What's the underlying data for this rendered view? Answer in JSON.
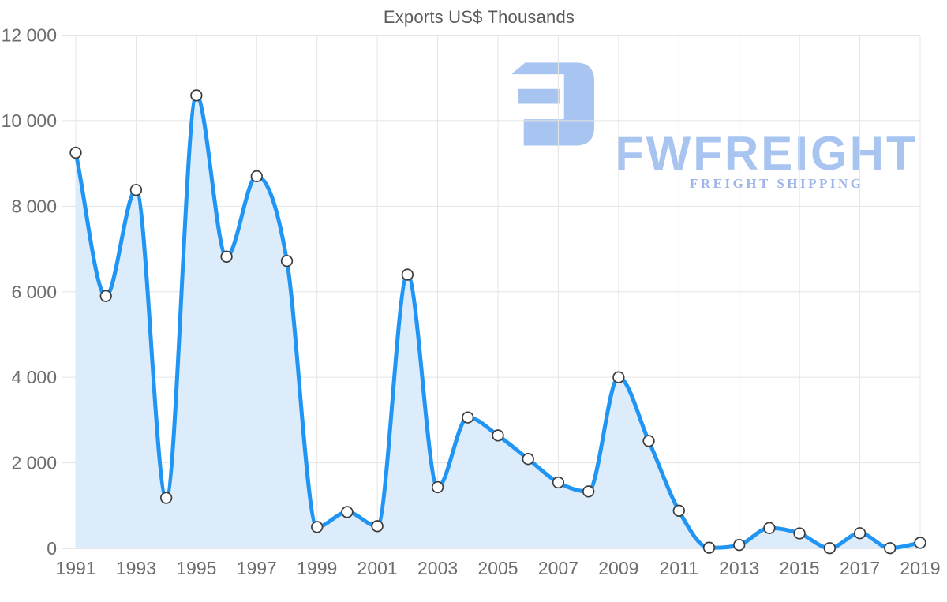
{
  "chart_data": {
    "type": "area",
    "title": "Exports US$ Thousands",
    "x": [
      1991,
      1992,
      1993,
      1994,
      1995,
      1996,
      1997,
      1998,
      1999,
      2000,
      2001,
      2002,
      2003,
      2004,
      2005,
      2006,
      2007,
      2008,
      2009,
      2010,
      2011,
      2012,
      2013,
      2014,
      2015,
      2016,
      2017,
      2018,
      2019
    ],
    "series": [
      {
        "name": "Exports",
        "values": [
          9250,
          5900,
          8380,
          1180,
          10590,
          6820,
          8700,
          6720,
          500,
          850,
          520,
          6400,
          1430,
          3060,
          2640,
          2090,
          1540,
          1330,
          4000,
          2510,
          880,
          15,
          80,
          475,
          350,
          5,
          355,
          5,
          130
        ]
      }
    ],
    "xlabel": "",
    "ylabel": "",
    "ylim": [
      0,
      12000
    ],
    "y_tick_values": [
      0,
      2000,
      4000,
      6000,
      8000,
      10000,
      12000
    ],
    "y_tick_labels": [
      "0",
      "2 000",
      "4 000",
      "6 000",
      "8 000",
      "10 000",
      "12 000"
    ],
    "x_tick_values": [
      1991,
      1993,
      1995,
      1997,
      1999,
      2001,
      2003,
      2005,
      2007,
      2009,
      2011,
      2013,
      2015,
      2017,
      2019
    ],
    "x_tick_labels": [
      "1991",
      "1993",
      "1995",
      "1997",
      "1999",
      "2001",
      "2003",
      "2005",
      "2007",
      "2009",
      "2011",
      "2013",
      "2015",
      "2017",
      "2019"
    ],
    "grid": "on",
    "legend": "none",
    "curve": "smooth",
    "marker": "white-circle-dark-outline"
  },
  "logo": {
    "brand": "FWFREIGHT",
    "tagline": "FREIGHT SHIPPING"
  },
  "colors": {
    "line": "#2095f3",
    "area_fill": "#ddecfb",
    "grid": "#e4e4e4",
    "axis_line": "#cfcfcf",
    "axis_text": "#6d6d6d",
    "title_text": "#5a5a5a",
    "marker_fill": "#ffffff",
    "marker_stroke": "#3b3b3b",
    "logo_primary": "#a8c5f1",
    "logo_tagline": "#9fb4e8"
  }
}
